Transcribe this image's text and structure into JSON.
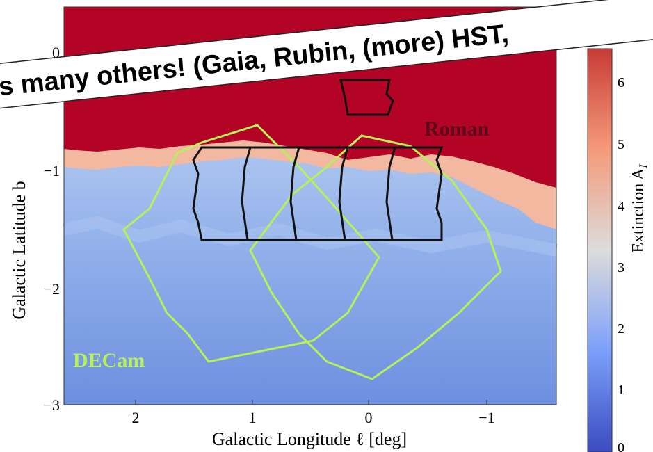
{
  "slide": {
    "banner": "s many others! (Gaia, Rubin, (more) HST,",
    "figure": {
      "x_label": "Galactic Longitude ℓ [deg]",
      "y_label": "Galactic Latitude b",
      "x_tick_labels": [
        "2",
        "1",
        "0",
        "−1"
      ],
      "y_tick_labels": [
        "0",
        "−1",
        "−2",
        "−3"
      ],
      "colorbar_label": "Extinction A",
      "colorbar_label_sub": "I",
      "colorbar_tick_labels": [
        "6",
        "5",
        "4",
        "3",
        "2",
        "1",
        "0"
      ],
      "footprint_labels": [
        "Roman",
        "DECam"
      ]
    }
  }
}
